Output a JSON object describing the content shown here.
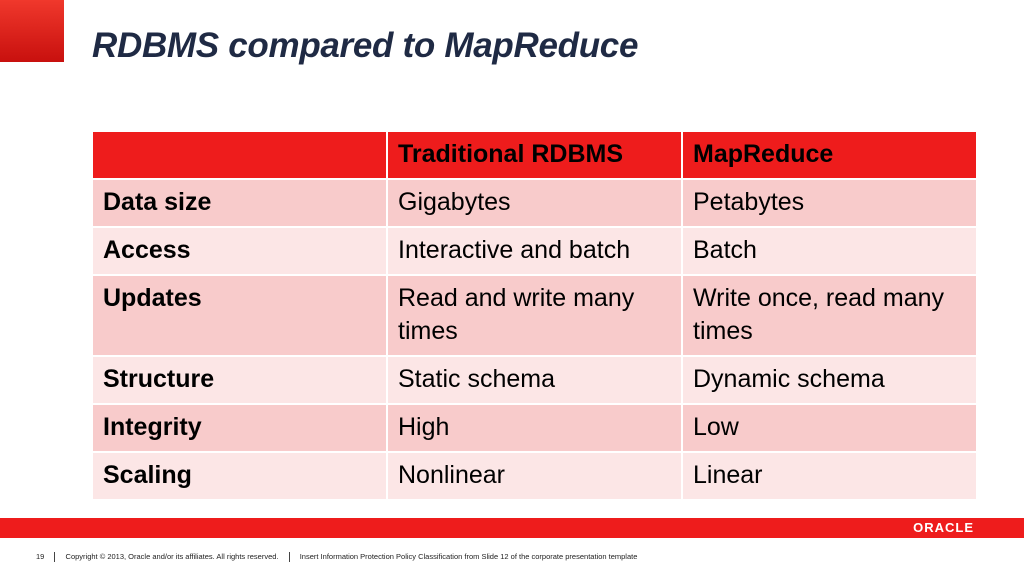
{
  "slide": {
    "title": "RDBMS compared to MapReduce"
  },
  "table": {
    "headers": [
      "",
      "Traditional RDBMS",
      "MapReduce"
    ],
    "rows": [
      {
        "label": "Data size",
        "rdbms": "Gigabytes",
        "mapreduce": "Petabytes"
      },
      {
        "label": "Access",
        "rdbms": "Interactive and batch",
        "mapreduce": "Batch"
      },
      {
        "label": "Updates",
        "rdbms": "Read and write many times",
        "mapreduce": "Write once, read many times"
      },
      {
        "label": "Structure",
        "rdbms": "Static schema",
        "mapreduce": "Dynamic schema"
      },
      {
        "label": "Integrity",
        "rdbms": "High",
        "mapreduce": "Low"
      },
      {
        "label": "Scaling",
        "rdbms": "Nonlinear",
        "mapreduce": "Linear"
      }
    ]
  },
  "footer": {
    "page_number": "19",
    "copyright": "Copyright © 2013, Oracle and/or its affiliates. All rights reserved.",
    "classification": "Insert Information Protection Policy Classification from Slide 12 of the corporate presentation template",
    "logo": "ORACLE"
  },
  "colors": {
    "accent_red": "#ee1c1c",
    "row_dark": "#f8cbcb",
    "row_light": "#fce6e6",
    "title": "#1f2a44"
  }
}
